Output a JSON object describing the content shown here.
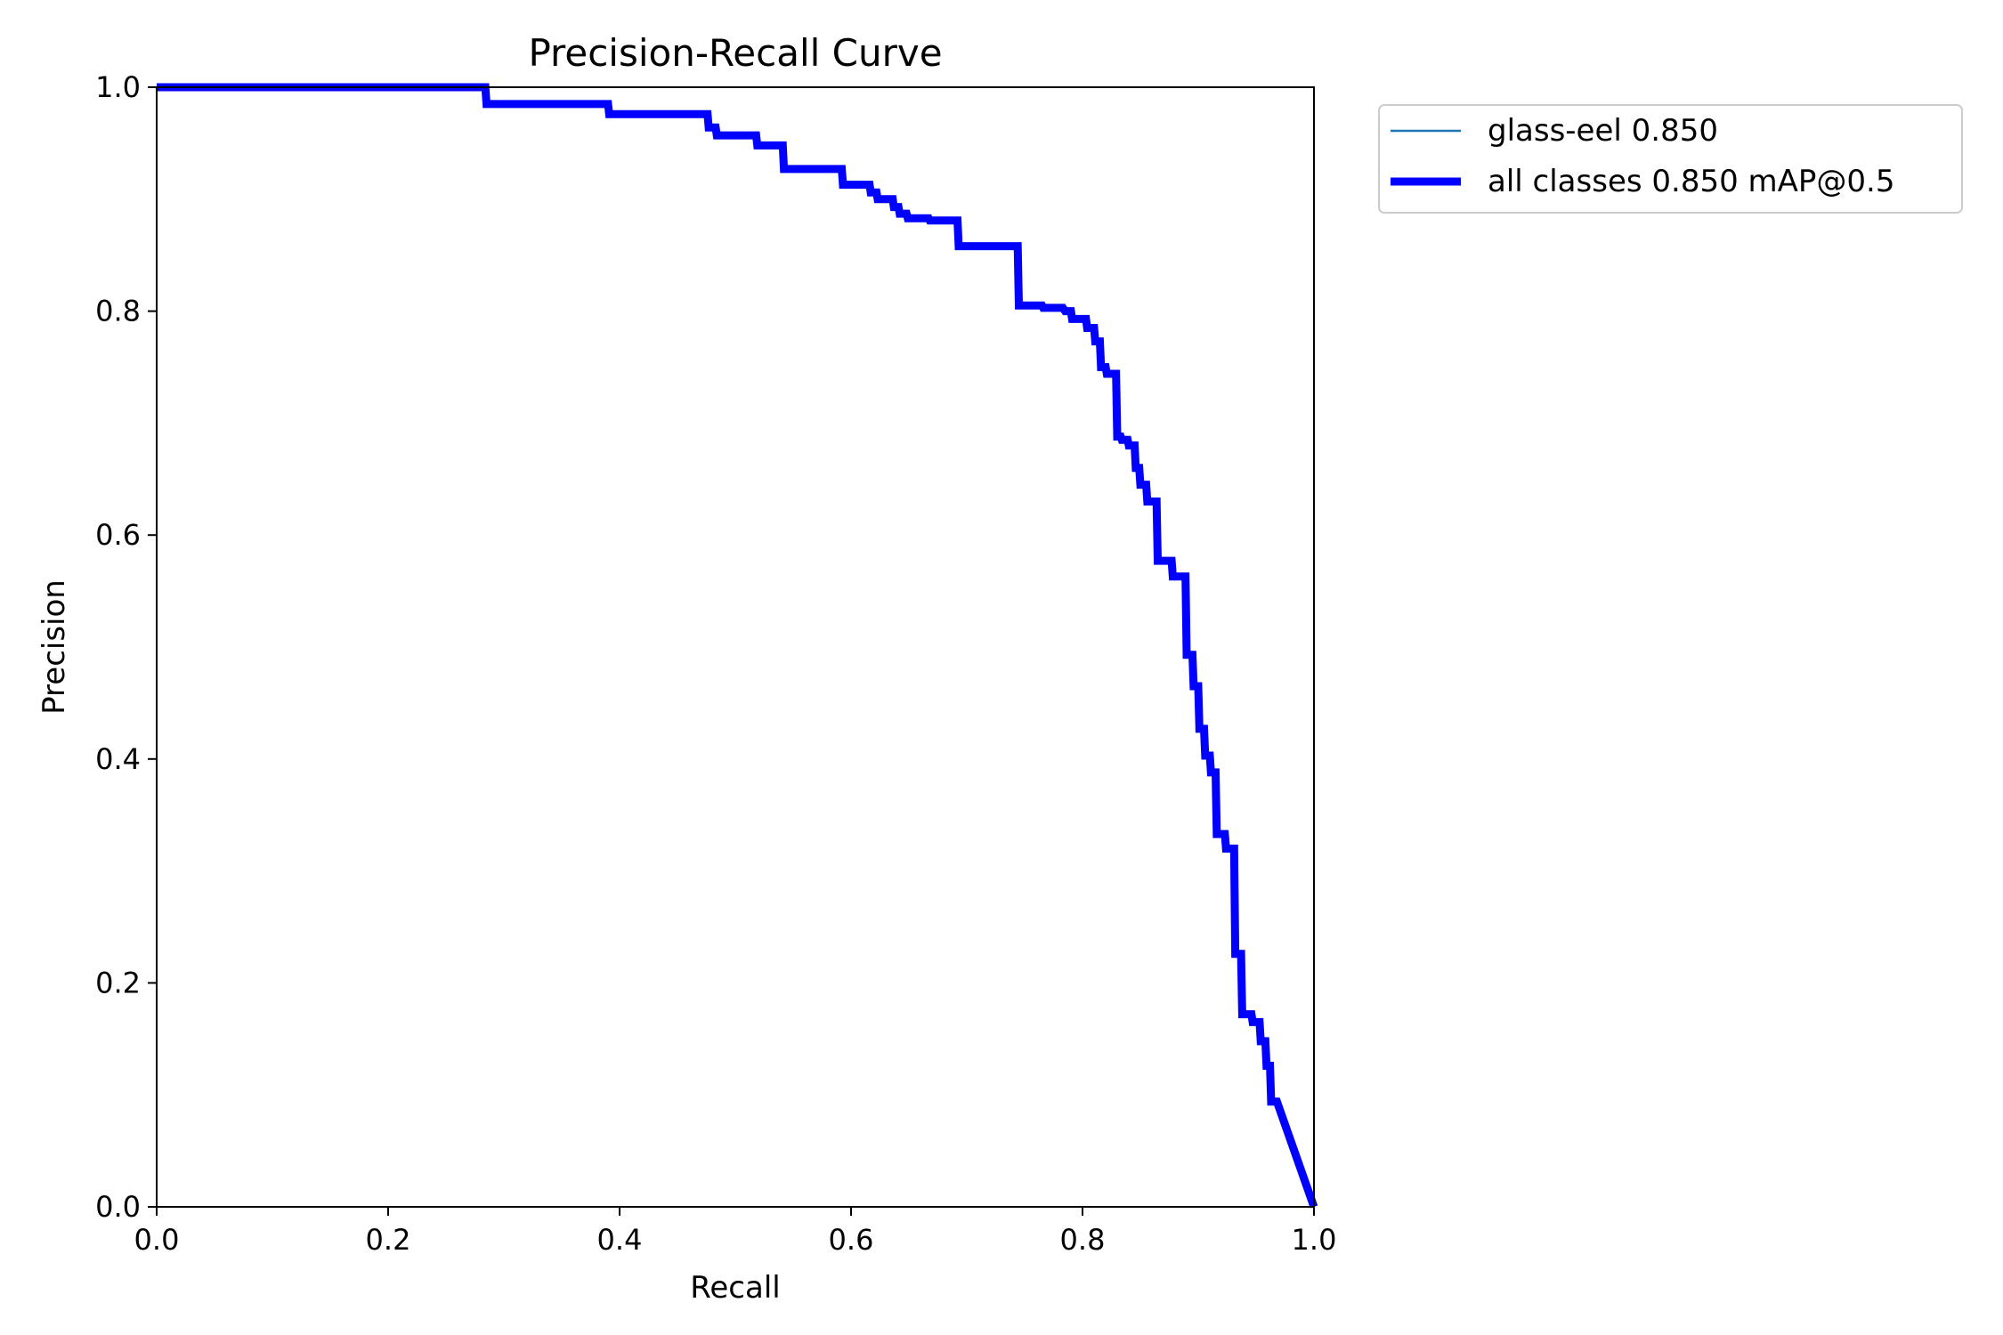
{
  "chart_data": {
    "type": "line",
    "title": "Precision-Recall Curve",
    "xlabel": "Recall",
    "ylabel": "Precision",
    "xlim": [
      0,
      1
    ],
    "ylim": [
      0,
      1
    ],
    "xticks": [
      "0.0",
      "0.2",
      "0.4",
      "0.6",
      "0.8",
      "1.0"
    ],
    "yticks": [
      "0.0",
      "0.2",
      "0.4",
      "0.6",
      "0.8",
      "1.0"
    ],
    "grid": false,
    "legend_position": "outside-top-right",
    "series": [
      {
        "name": "glass-eel 0.850",
        "color": "#1f77b4",
        "line": "thin",
        "x": [
          0,
          0.284,
          0.285,
          0.39,
          0.391,
          0.476,
          0.477,
          0.483,
          0.484,
          0.518,
          0.519,
          0.541,
          0.542,
          0.592,
          0.593,
          0.616,
          0.617,
          0.622,
          0.623,
          0.636,
          0.637,
          0.641,
          0.642,
          0.648,
          0.649,
          0.667,
          0.668,
          0.692,
          0.693,
          0.744,
          0.745,
          0.765,
          0.766,
          0.783,
          0.785,
          0.79,
          0.791,
          0.803,
          0.804,
          0.81,
          0.811,
          0.815,
          0.816,
          0.82,
          0.821,
          0.829,
          0.83,
          0.833,
          0.834,
          0.839,
          0.84,
          0.845,
          0.846,
          0.849,
          0.85,
          0.855,
          0.856,
          0.864,
          0.865,
          0.877,
          0.878,
          0.889,
          0.89,
          0.895,
          0.896,
          0.9,
          0.901,
          0.905,
          0.906,
          0.91,
          0.911,
          0.915,
          0.916,
          0.923,
          0.924,
          0.931,
          0.932,
          0.937,
          0.938,
          0.946,
          0.947,
          0.953,
          0.954,
          0.958,
          0.959,
          0.962,
          0.963,
          0.968,
          1.0
        ],
        "y": [
          1.0,
          1.0,
          0.985,
          0.985,
          0.976,
          0.976,
          0.964,
          0.964,
          0.957,
          0.957,
          0.948,
          0.948,
          0.927,
          0.927,
          0.913,
          0.913,
          0.906,
          0.906,
          0.9,
          0.9,
          0.893,
          0.893,
          0.887,
          0.887,
          0.883,
          0.883,
          0.881,
          0.881,
          0.858,
          0.858,
          0.805,
          0.805,
          0.803,
          0.803,
          0.8,
          0.8,
          0.793,
          0.793,
          0.785,
          0.785,
          0.773,
          0.773,
          0.75,
          0.75,
          0.744,
          0.744,
          0.688,
          0.688,
          0.685,
          0.685,
          0.68,
          0.68,
          0.66,
          0.66,
          0.645,
          0.645,
          0.63,
          0.63,
          0.577,
          0.577,
          0.563,
          0.563,
          0.493,
          0.493,
          0.465,
          0.465,
          0.427,
          0.427,
          0.403,
          0.403,
          0.388,
          0.388,
          0.333,
          0.333,
          0.32,
          0.32,
          0.226,
          0.226,
          0.172,
          0.172,
          0.165,
          0.165,
          0.148,
          0.148,
          0.126,
          0.126,
          0.094,
          0.094,
          0.0
        ]
      },
      {
        "name": "all classes 0.850 mAP@0.5",
        "color": "#0000ff",
        "line": "thick",
        "x": [
          0,
          0.284,
          0.285,
          0.39,
          0.391,
          0.476,
          0.477,
          0.483,
          0.484,
          0.518,
          0.519,
          0.541,
          0.542,
          0.592,
          0.593,
          0.616,
          0.617,
          0.622,
          0.623,
          0.636,
          0.637,
          0.641,
          0.642,
          0.648,
          0.649,
          0.667,
          0.668,
          0.692,
          0.693,
          0.744,
          0.745,
          0.765,
          0.766,
          0.783,
          0.785,
          0.79,
          0.791,
          0.803,
          0.804,
          0.81,
          0.811,
          0.815,
          0.816,
          0.82,
          0.821,
          0.829,
          0.83,
          0.833,
          0.834,
          0.839,
          0.84,
          0.845,
          0.846,
          0.849,
          0.85,
          0.855,
          0.856,
          0.864,
          0.865,
          0.877,
          0.878,
          0.889,
          0.89,
          0.895,
          0.896,
          0.9,
          0.901,
          0.905,
          0.906,
          0.91,
          0.911,
          0.915,
          0.916,
          0.923,
          0.924,
          0.931,
          0.932,
          0.937,
          0.938,
          0.946,
          0.947,
          0.953,
          0.954,
          0.958,
          0.959,
          0.962,
          0.963,
          0.968,
          1.0
        ],
        "y": [
          1.0,
          1.0,
          0.985,
          0.985,
          0.976,
          0.976,
          0.964,
          0.964,
          0.957,
          0.957,
          0.948,
          0.948,
          0.927,
          0.927,
          0.913,
          0.913,
          0.906,
          0.906,
          0.9,
          0.9,
          0.893,
          0.893,
          0.887,
          0.887,
          0.883,
          0.883,
          0.881,
          0.881,
          0.858,
          0.858,
          0.805,
          0.805,
          0.803,
          0.803,
          0.8,
          0.8,
          0.793,
          0.793,
          0.785,
          0.785,
          0.773,
          0.773,
          0.75,
          0.75,
          0.744,
          0.744,
          0.688,
          0.688,
          0.685,
          0.685,
          0.68,
          0.68,
          0.66,
          0.66,
          0.645,
          0.645,
          0.63,
          0.63,
          0.577,
          0.577,
          0.563,
          0.563,
          0.493,
          0.493,
          0.465,
          0.465,
          0.427,
          0.427,
          0.403,
          0.403,
          0.388,
          0.388,
          0.333,
          0.333,
          0.32,
          0.32,
          0.226,
          0.226,
          0.172,
          0.172,
          0.165,
          0.165,
          0.148,
          0.148,
          0.126,
          0.126,
          0.094,
          0.094,
          0.0
        ]
      }
    ]
  }
}
